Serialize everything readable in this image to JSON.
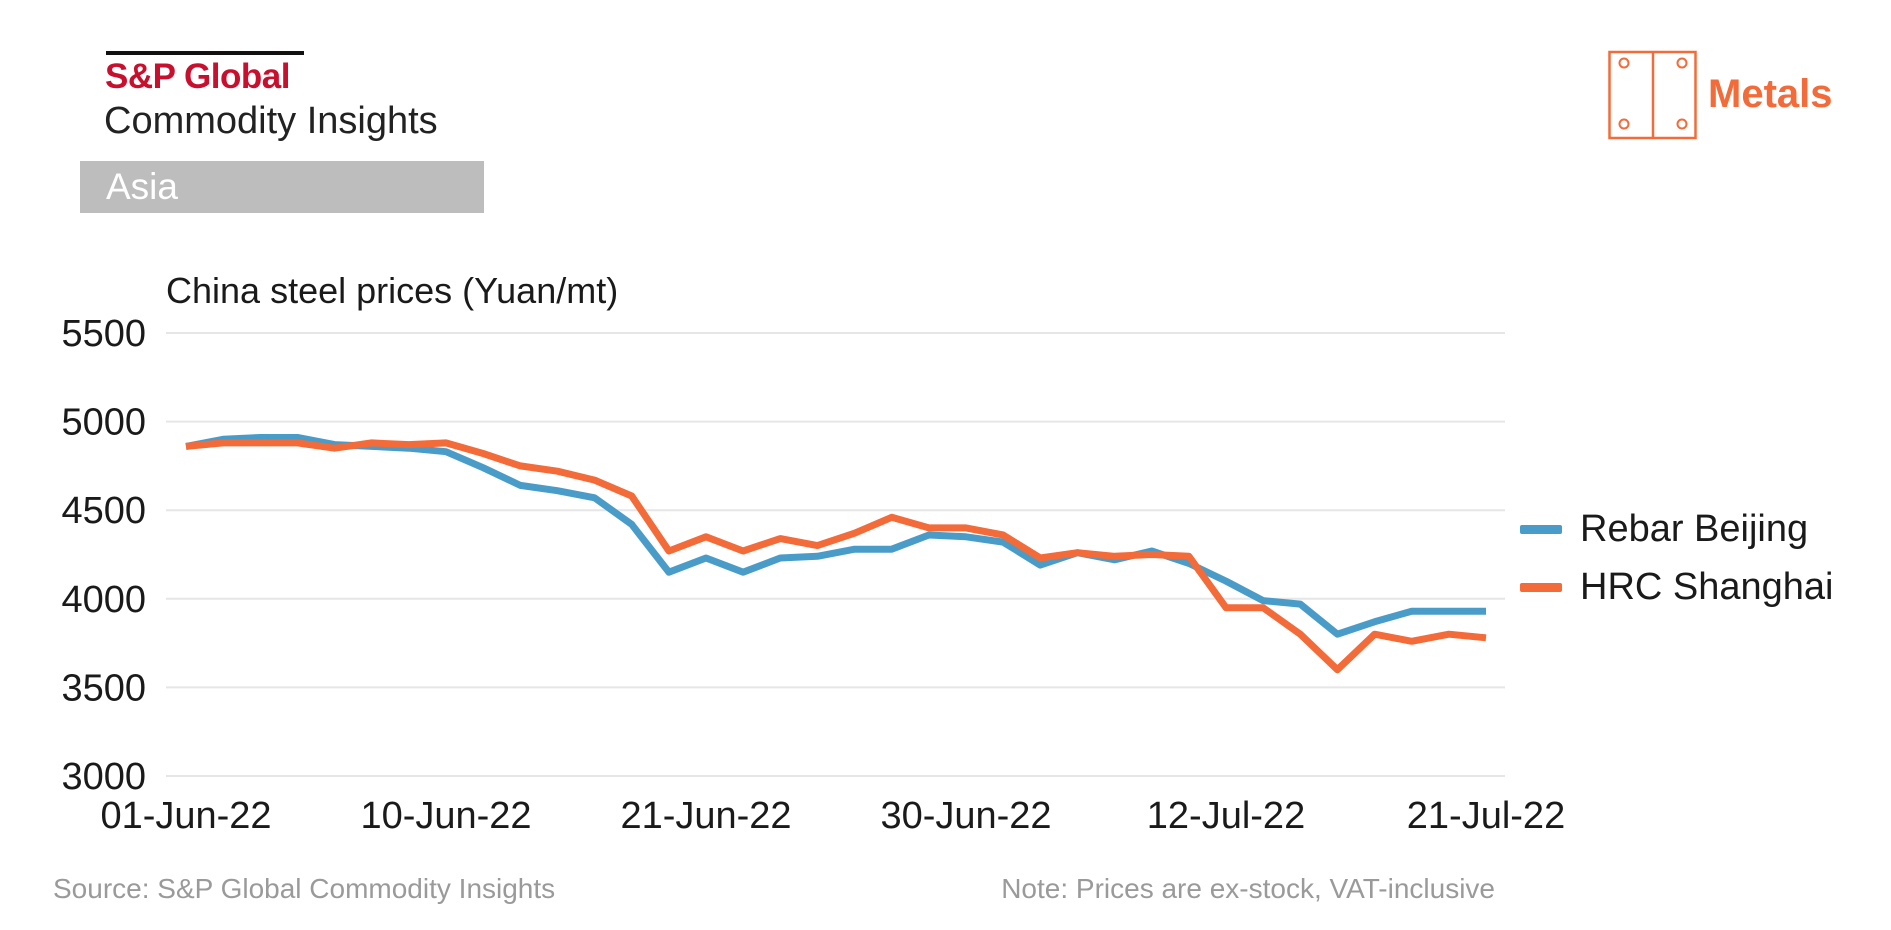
{
  "header": {
    "brand_name": "S&P Global",
    "brand_sub": "Commodity Insights",
    "region": "Asia",
    "sector": "Metals"
  },
  "colors": {
    "brand_red": "#c8102e",
    "accent_orange": "#f26b38",
    "rebar_blue": "#4a9cc8",
    "hrc_orange": "#f26b38",
    "grid": "#e6e6e6",
    "region_bg": "#bdbdbd"
  },
  "footer": {
    "source": "Source: S&P Global Commodity Insights",
    "note": "Note: Prices are ex-stock, VAT-inclusive"
  },
  "chart_data": {
    "type": "line",
    "title": "China steel prices (Yuan/mt)",
    "xlabel": "",
    "ylabel": "Yuan/mt",
    "ylim": [
      3000,
      5500
    ],
    "yticks": [
      "3000",
      "3500",
      "4000",
      "4500",
      "5000",
      "5500"
    ],
    "xtick_labels": [
      "01-Jun-22",
      "10-Jun-22",
      "21-Jun-22",
      "30-Jun-22",
      "12-Jul-22",
      "21-Jul-22"
    ],
    "xtick_index": [
      0,
      7,
      14,
      21,
      28,
      35
    ],
    "grid": true,
    "legend_position": "right",
    "series": [
      {
        "name": "Rebar Beijing",
        "color": "#4a9cc8",
        "values": [
          4860,
          4900,
          4910,
          4910,
          4870,
          4860,
          4850,
          4830,
          4740,
          4640,
          4610,
          4570,
          4420,
          4150,
          4230,
          4150,
          4230,
          4240,
          4280,
          4280,
          4360,
          4350,
          4320,
          4190,
          4260,
          4220,
          4270,
          4200,
          4100,
          3990,
          3970,
          3800,
          3870,
          3930,
          3930,
          3930
        ]
      },
      {
        "name": "HRC Shanghai",
        "color": "#f26b38",
        "values": [
          4860,
          4880,
          4880,
          4880,
          4850,
          4880,
          4870,
          4880,
          4820,
          4750,
          4720,
          4670,
          4580,
          4270,
          4350,
          4270,
          4340,
          4300,
          4370,
          4460,
          4400,
          4400,
          4360,
          4230,
          4260,
          4240,
          4250,
          4240,
          3950,
          3950,
          3800,
          3600,
          3800,
          3760,
          3800,
          3780
        ]
      }
    ]
  }
}
